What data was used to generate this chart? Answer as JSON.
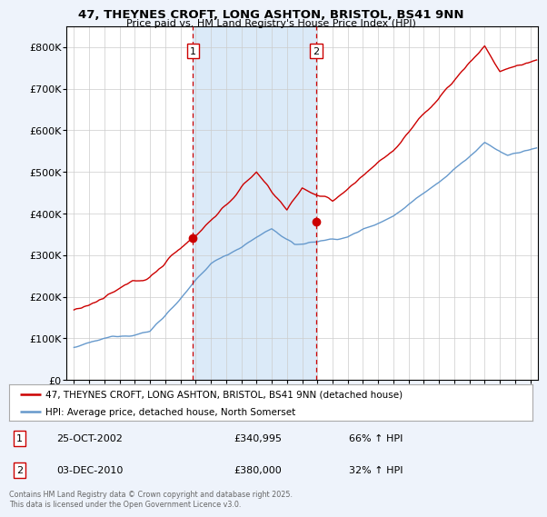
{
  "title": "47, THEYNES CROFT, LONG ASHTON, BRISTOL, BS41 9NN",
  "subtitle": "Price paid vs. HM Land Registry's House Price Index (HPI)",
  "legend_property": "47, THEYNES CROFT, LONG ASHTON, BRISTOL, BS41 9NN (detached house)",
  "legend_hpi": "HPI: Average price, detached house, North Somerset",
  "footnote": "Contains HM Land Registry data © Crown copyright and database right 2025.\nThis data is licensed under the Open Government Licence v3.0.",
  "sale1_label": "1",
  "sale1_date": "25-OCT-2002",
  "sale1_price": "£340,995",
  "sale1_hpi": "66% ↑ HPI",
  "sale2_label": "2",
  "sale2_date": "03-DEC-2010",
  "sale2_price": "£380,000",
  "sale2_hpi": "32% ↑ HPI",
  "vline1_x": 2002.82,
  "vline2_x": 2010.92,
  "sale1_marker_y": 340995,
  "sale2_marker_y": 380000,
  "ylim": [
    0,
    850000
  ],
  "xlim": [
    1994.5,
    2025.5
  ],
  "yticks": [
    0,
    100000,
    200000,
    300000,
    400000,
    500000,
    600000,
    700000,
    800000
  ],
  "ytick_labels": [
    "£0",
    "£100K",
    "£200K",
    "£300K",
    "£400K",
    "£500K",
    "£600K",
    "£700K",
    "£800K"
  ],
  "xticks": [
    1995,
    1996,
    1997,
    1998,
    1999,
    2000,
    2001,
    2002,
    2003,
    2004,
    2005,
    2006,
    2007,
    2008,
    2009,
    2010,
    2011,
    2012,
    2013,
    2014,
    2015,
    2016,
    2017,
    2018,
    2019,
    2020,
    2021,
    2022,
    2023,
    2024,
    2025
  ],
  "bg_color": "#eef3fb",
  "span_color": "#d8e8f8",
  "plot_bg": "#ffffff",
  "red_color": "#cc0000",
  "blue_color": "#6699cc",
  "grid_color": "#cccccc",
  "vline_color": "#cc0000"
}
